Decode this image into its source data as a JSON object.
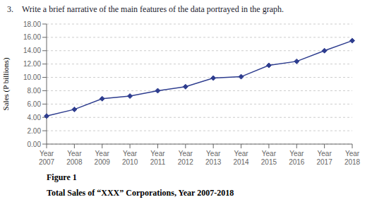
{
  "chart_data": {
    "type": "line",
    "title": "Figure 1",
    "subtitle": "Total Sales of “XXX” Corporations, Year 2007-2018",
    "annotations": [
      "3.",
      "Write a brief narrative of the main features of the data portrayed in the graph."
    ],
    "y_label": "Sales (P billions)",
    "categories": [
      "Year\n2007",
      "Year\n2008",
      "Year\n2009",
      "Year\n2010",
      "Year\n2011",
      "Year\n2012",
      "Year\n2013",
      "Year\n2014",
      "Year\n2015",
      "Year\n2016",
      "Year\n2017",
      "Year\n2018"
    ],
    "values": [
      4.2,
      5.2,
      6.8,
      7.2,
      8.0,
      8.6,
      9.9,
      10.1,
      11.8,
      12.4,
      14.0,
      15.5
    ],
    "color": "#2e3d8f",
    "marker": "diamond",
    "ylim": [
      0,
      18
    ],
    "yticks": [
      {
        "value": 0,
        "label": "0.00"
      },
      {
        "value": 2,
        "label": "2.00"
      },
      {
        "value": 4,
        "label": "4.00"
      },
      {
        "value": 6,
        "label": "6.00"
      },
      {
        "value": 8,
        "label": "8.00"
      },
      {
        "value": 10,
        "label": "10.00"
      },
      {
        "value": 12,
        "label": "12.00"
      },
      {
        "value": 14,
        "label": "14.00"
      },
      {
        "value": 16,
        "label": "16.00"
      },
      {
        "value": 18,
        "label": "18.00"
      }
    ],
    "grid": true
  }
}
